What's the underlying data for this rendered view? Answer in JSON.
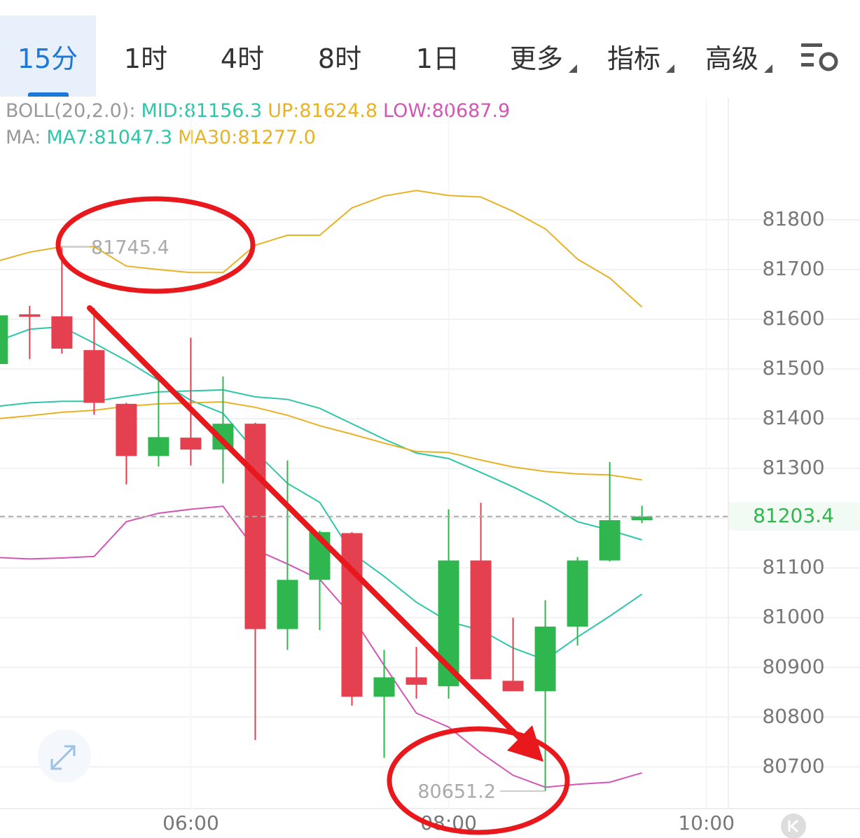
{
  "tabs": [
    "15分",
    "1时",
    "4时",
    "8时",
    "1日",
    "更多",
    "指标",
    "高级"
  ],
  "chart_data": {
    "type": "candlestick",
    "boll_label": "BOLL(20,2.0):",
    "ma_label": "MA:",
    "x": [
      4.5,
      4.75,
      5,
      5.25,
      5.5,
      5.75,
      6,
      6.25,
      6.5,
      6.75,
      7,
      7.25,
      7.5,
      7.75,
      8,
      8.25,
      8.5,
      8.75,
      9,
      9.25,
      9.5
    ],
    "open": [
      81510,
      81610,
      81606,
      81538,
      81430,
      81325,
      81362,
      81338,
      81390,
      80977,
      81076,
      81170,
      80841,
      80880,
      80862,
      81115,
      80873,
      80852,
      80982,
      81115,
      81196
    ],
    "high": [
      81615,
      81627,
      81745.4,
      81623,
      81432,
      81482,
      81563,
      81485,
      81392,
      81316,
      81175,
      81172,
      80935,
      80941,
      81218,
      81231,
      81000,
      81035,
      81122,
      81313,
      81225
    ],
    "low": [
      81505,
      81520,
      81531,
      81408,
      81268,
      81304,
      81306,
      81270,
      80754,
      80935,
      80975,
      80823,
      80718,
      80837,
      80837,
      80876,
      80852,
      80651.2,
      80944,
      81113,
      81190
    ],
    "close": [
      81608,
      81605,
      81541,
      81432,
      81325,
      81363,
      81338,
      81390,
      80977,
      81076,
      81172,
      80841,
      80880,
      80865,
      81115,
      80876,
      80852,
      80982,
      81115,
      81196,
      81203.4
    ],
    "up_color": "#2fb64f",
    "down_color": "#e4404f",
    "series": [
      {
        "name": "MID:81156.3",
        "color": "#2ec6a8",
        "values": [
          81425,
          81432,
          81435,
          81435,
          81445,
          81454,
          81456,
          81458,
          81444,
          81439,
          81421,
          81390,
          81359,
          81331,
          81320,
          81292,
          81263,
          81231,
          81193,
          81176,
          81156.3
        ]
      },
      {
        "name": "UP:81624.8",
        "color": "#e8b224",
        "values": [
          81717,
          81735,
          81746,
          81746,
          81707,
          81700,
          81694,
          81694,
          81749,
          81769,
          81769,
          81824,
          81848,
          81859,
          81849,
          81846,
          81817,
          81782,
          81721,
          81683,
          81624.8
        ]
      },
      {
        "name": "LOW:80687.9",
        "color": "#d456b4",
        "values": [
          81121,
          81118,
          81120,
          81123,
          81193,
          81210,
          81218,
          81224,
          81137,
          81108,
          81077,
          81003,
          80904,
          80808,
          80780,
          80728,
          80683,
          80659,
          80665,
          80669,
          80687.9
        ]
      },
      {
        "name": "MA7:81047.3",
        "color": "#2ec6a8",
        "values": [
          81556,
          81580,
          81585,
          81552,
          81517,
          81477,
          81437,
          81411,
          81334,
          81270,
          81232,
          81130,
          81083,
          81031,
          80992,
          80975,
          80939,
          80915,
          80961,
          81003,
          81047.3
        ]
      },
      {
        "name": "MA30:81277.0",
        "color": "#e8b224",
        "values": [
          81400,
          81406,
          81413,
          81417,
          81425,
          81430,
          81432,
          81434,
          81423,
          81407,
          81386,
          81369,
          81351,
          81334,
          81332,
          81317,
          81303,
          81294,
          81289,
          81287,
          81277.0
        ]
      }
    ],
    "high_label": 81745.4,
    "low_label": 80651.2,
    "last_price": 81203.4,
    "last_price_color": "#2fb64f",
    "xlim": [
      4.52,
      10.17
    ],
    "xticks": [
      {
        "value": 6,
        "label": "06:00"
      },
      {
        "value": 8,
        "label": "08:00"
      },
      {
        "value": 10,
        "label": "10:00"
      }
    ],
    "ylim": [
      80616,
      82045
    ],
    "yticks": [
      80700,
      80800,
      80900,
      81000,
      81100,
      81200,
      81300,
      81400,
      81500,
      81600,
      81700,
      81800
    ],
    "grid": true
  }
}
